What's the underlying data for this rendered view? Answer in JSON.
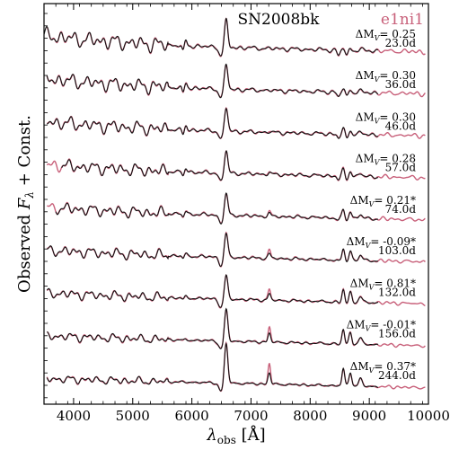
{
  "chart_data": {
    "type": "line",
    "title": "SN2008bk",
    "xlabel": "λobs [Å]",
    "xlabel_main": "λ",
    "xlabel_sub": "obs",
    "xlabel_unit": " [Å]",
    "ylabel": "Observed Fλ + Const.",
    "ylabel_pre": "Observed ",
    "ylabel_F": "F",
    "ylabel_sub": "λ",
    "ylabel_post": " + Const.",
    "xlim": [
      3500,
      10000
    ],
    "xticks": [
      4000,
      5000,
      6000,
      7000,
      8000,
      9000,
      10000
    ],
    "xtick_labels": [
      "4000",
      "5000",
      "6000",
      "7000",
      "8000",
      "9000",
      "10000"
    ],
    "grid": false,
    "legend": {
      "placement": "top-right",
      "entries": [
        {
          "name": "e1ni1",
          "color": "#c8607a"
        }
      ]
    },
    "colors": {
      "observed": "#111111",
      "model": "#c8607a"
    },
    "epochs": [
      {
        "dm": "0.25",
        "star": "",
        "age": "23.0d",
        "obs_range": [
          3500,
          9150
        ],
        "line_halpha": 1.35,
        "line_ca": 0.15
      },
      {
        "dm": "0.30",
        "star": "",
        "age": "36.0d",
        "obs_range": [
          3550,
          9150
        ],
        "line_halpha": 1.25,
        "line_ca": 0.25
      },
      {
        "dm": "0.30",
        "star": "",
        "age": "46.0d",
        "obs_range": [
          3550,
          9150
        ],
        "line_halpha": 1.2,
        "line_ca": 0.35
      },
      {
        "dm": "0.28",
        "star": "",
        "age": "57.0d",
        "obs_range": [
          3800,
          9150
        ],
        "line_halpha": 1.15,
        "line_ca": 0.45
      },
      {
        "dm": "0.21",
        "star": "*",
        "age": "74.0d",
        "obs_range": [
          3700,
          9150
        ],
        "line_halpha": 1.1,
        "line_ca": 0.6
      },
      {
        "dm": "-0.09",
        "star": "*",
        "age": "103.0d",
        "obs_range": [
          3550,
          9150
        ],
        "line_halpha": 1.2,
        "line_ca": 0.8
      },
      {
        "dm": "0.81",
        "star": "*",
        "age": "132.0d",
        "obs_range": [
          3550,
          9150
        ],
        "line_halpha": 1.2,
        "line_ca": 0.85
      },
      {
        "dm": "-0.01",
        "star": "*",
        "age": "156.0d",
        "obs_range": [
          3550,
          9150
        ],
        "line_halpha": 1.6,
        "line_ca": 1.0
      },
      {
        "dm": "0.37",
        "star": "*",
        "age": "244.0d",
        "obs_range": [
          3550,
          9150
        ],
        "line_halpha": 2.0,
        "line_ca": 1.2
      }
    ],
    "delta_label_prefix": "ΔM",
    "delta_label_sub": "V",
    "delta_label_eq": "= "
  }
}
